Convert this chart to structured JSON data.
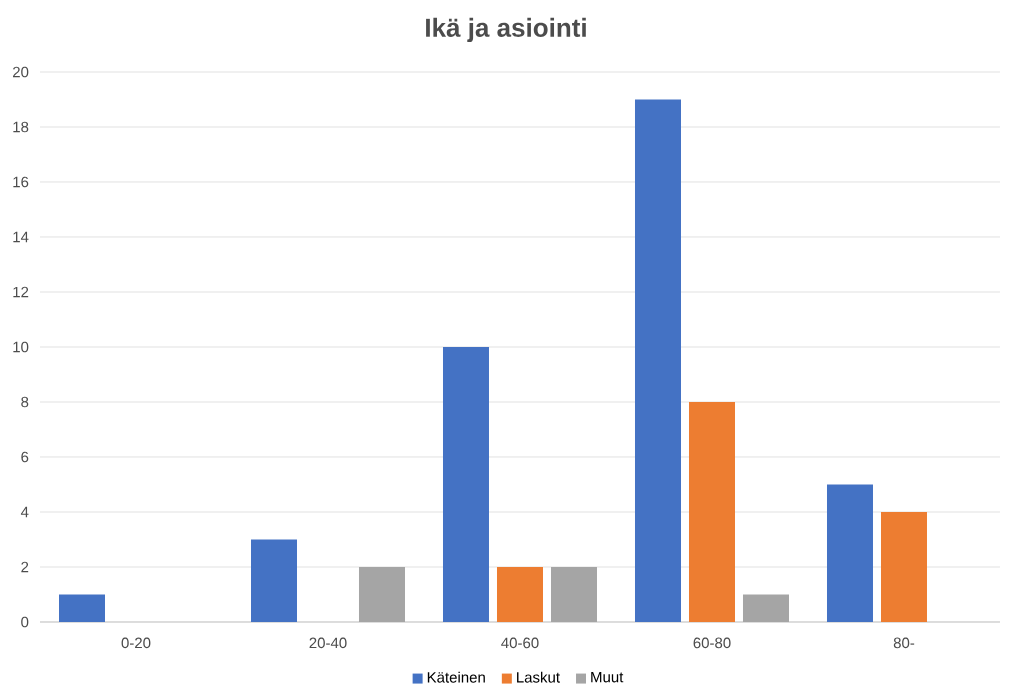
{
  "chart_data": {
    "type": "bar",
    "title": "Ikä ja asiointi",
    "categories": [
      "0-20",
      "20-40",
      "40-60",
      "60-80",
      "80-"
    ],
    "series": [
      {
        "name": "Käteinen",
        "color": "#4472c4",
        "values": [
          1,
          3,
          10,
          19,
          5
        ]
      },
      {
        "name": "Laskut",
        "color": "#ed7d31",
        "values": [
          0,
          0,
          2,
          8,
          4
        ]
      },
      {
        "name": "Muut",
        "color": "#a5a5a5",
        "values": [
          0,
          2,
          2,
          1,
          0
        ]
      }
    ],
    "ylim": [
      0,
      20
    ],
    "yticks": [
      0,
      2,
      4,
      6,
      8,
      10,
      12,
      14,
      16,
      18,
      20
    ],
    "grid": "y",
    "legend": "bottom"
  }
}
